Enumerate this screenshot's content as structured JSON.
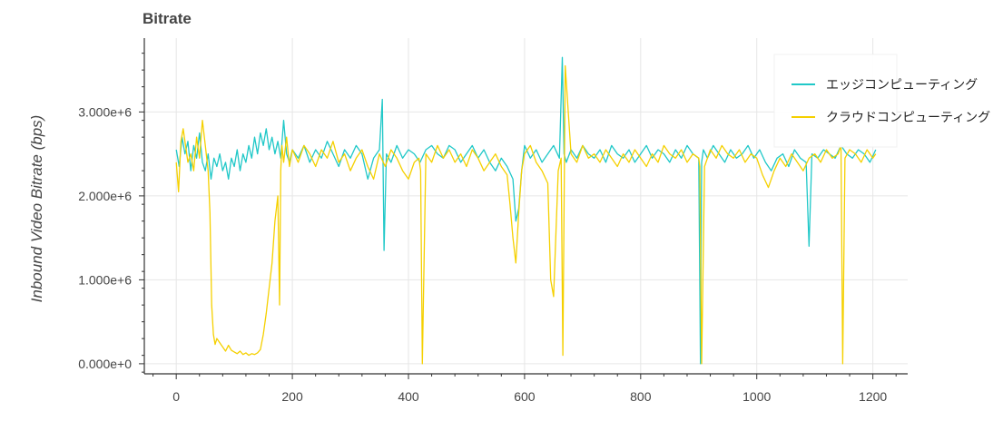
{
  "chart_data": {
    "type": "line",
    "title": "Bitrate",
    "xlabel": "",
    "ylabel": "Inbound Video Bitrate (bps)",
    "xlim": [
      -55,
      1260
    ],
    "ylim": [
      -120000,
      3880000
    ],
    "xticks": [
      0,
      200,
      400,
      600,
      800,
      1000,
      1200
    ],
    "xtick_labels": [
      "0",
      "200",
      "400",
      "600",
      "800",
      "1000",
      "1200"
    ],
    "yticks": [
      0,
      1000000,
      2000000,
      3000000
    ],
    "ytick_labels": [
      "0.000e+0",
      "1.000e+6",
      "2.000e+6",
      "3.000e+6"
    ],
    "grid": true,
    "legend_position": "top-right",
    "series": [
      {
        "name": "エッジコンピューティング",
        "color": "#20C8C8",
        "x": [
          0,
          5,
          10,
          15,
          20,
          25,
          30,
          35,
          40,
          45,
          50,
          55,
          60,
          65,
          70,
          75,
          80,
          85,
          90,
          95,
          100,
          105,
          110,
          115,
          120,
          125,
          130,
          135,
          140,
          145,
          150,
          155,
          160,
          165,
          170,
          175,
          180,
          185,
          190,
          195,
          200,
          210,
          220,
          230,
          240,
          250,
          260,
          270,
          280,
          290,
          300,
          310,
          320,
          330,
          340,
          350,
          355,
          358,
          362,
          370,
          380,
          390,
          400,
          410,
          420,
          430,
          440,
          450,
          460,
          470,
          480,
          490,
          500,
          510,
          520,
          530,
          540,
          550,
          560,
          570,
          580,
          585,
          590,
          595,
          600,
          610,
          620,
          630,
          640,
          650,
          660,
          665,
          668,
          672,
          680,
          690,
          700,
          710,
          720,
          730,
          740,
          750,
          760,
          770,
          780,
          790,
          800,
          810,
          820,
          830,
          840,
          850,
          860,
          870,
          880,
          890,
          900,
          903,
          905,
          908,
          915,
          925,
          935,
          945,
          955,
          965,
          975,
          985,
          995,
          1005,
          1015,
          1025,
          1035,
          1045,
          1055,
          1065,
          1075,
          1085,
          1090,
          1095,
          1105,
          1115,
          1125,
          1135,
          1145,
          1155,
          1165,
          1175,
          1185,
          1195,
          1205
        ],
        "values": [
          2550000,
          2350000,
          2700000,
          2500000,
          2650000,
          2300000,
          2600000,
          2450000,
          2750000,
          2400000,
          2300000,
          2500000,
          2200000,
          2450000,
          2350000,
          2500000,
          2300000,
          2400000,
          2200000,
          2450000,
          2350000,
          2550000,
          2300000,
          2500000,
          2400000,
          2600000,
          2450000,
          2700000,
          2500000,
          2750000,
          2600000,
          2800000,
          2550000,
          2700000,
          2500000,
          2650000,
          2450000,
          2900000,
          2500000,
          2400000,
          2550000,
          2450000,
          2600000,
          2400000,
          2550000,
          2450000,
          2650000,
          2500000,
          2350000,
          2550000,
          2450000,
          2600000,
          2500000,
          2200000,
          2450000,
          2550000,
          3150000,
          1350000,
          2500000,
          2400000,
          2600000,
          2450000,
          2550000,
          2500000,
          2400000,
          2550000,
          2600000,
          2500000,
          2450000,
          2600000,
          2550000,
          2400000,
          2500000,
          2600000,
          2450000,
          2550000,
          2400000,
          2300000,
          2450000,
          2350000,
          2200000,
          1700000,
          1850000,
          2300000,
          2600000,
          2450000,
          2550000,
          2400000,
          2500000,
          2600000,
          2450000,
          3650000,
          2500000,
          2400000,
          2550000,
          2450000,
          2600000,
          2500000,
          2450000,
          2550000,
          2400000,
          2600000,
          2500000,
          2450000,
          2550000,
          2400000,
          2500000,
          2600000,
          2450000,
          2550000,
          2500000,
          2400000,
          2550000,
          2450000,
          2600000,
          2500000,
          2450000,
          0,
          2400000,
          2550000,
          2450000,
          2600000,
          2500000,
          2400000,
          2550000,
          2450000,
          2500000,
          2600000,
          2450000,
          2550000,
          2400000,
          2300000,
          2450000,
          2500000,
          2350000,
          2550000,
          2450000,
          2400000,
          1400000,
          2500000,
          2450000,
          2550000,
          2500000,
          2450000,
          2600000,
          2500000,
          2450000,
          2550000,
          2500000,
          2400000,
          2550000
        ]
      },
      {
        "name": "クラウドコンピューティング",
        "color": "#F5D000",
        "x": [
          0,
          4,
          8,
          12,
          16,
          20,
          25,
          30,
          35,
          40,
          45,
          50,
          55,
          58,
          61,
          64,
          67,
          70,
          75,
          80,
          85,
          90,
          95,
          100,
          105,
          110,
          115,
          120,
          125,
          130,
          135,
          140,
          145,
          150,
          155,
          160,
          165,
          170,
          175,
          178,
          180,
          182,
          185,
          190,
          195,
          200,
          210,
          220,
          230,
          240,
          250,
          260,
          270,
          280,
          290,
          300,
          310,
          320,
          330,
          340,
          350,
          360,
          370,
          380,
          390,
          400,
          410,
          418,
          421,
          424,
          430,
          440,
          450,
          460,
          470,
          480,
          490,
          500,
          510,
          520,
          530,
          540,
          550,
          560,
          570,
          575,
          580,
          585,
          590,
          595,
          600,
          610,
          620,
          630,
          640,
          645,
          650,
          658,
          663,
          666,
          670,
          680,
          690,
          700,
          710,
          720,
          730,
          740,
          750,
          760,
          770,
          780,
          790,
          800,
          810,
          820,
          830,
          840,
          850,
          860,
          870,
          880,
          890,
          900,
          902,
          905,
          910,
          920,
          930,
          940,
          950,
          960,
          970,
          980,
          990,
          1000,
          1010,
          1020,
          1030,
          1040,
          1050,
          1060,
          1070,
          1080,
          1090,
          1100,
          1110,
          1120,
          1130,
          1140,
          1145,
          1148,
          1152,
          1160,
          1170,
          1180,
          1190,
          1200,
          1205
        ],
        "values": [
          2400000,
          2050000,
          2650000,
          2800000,
          2600000,
          2400000,
          2500000,
          2300000,
          2700000,
          2450000,
          2900000,
          2600000,
          2300000,
          1800000,
          700000,
          350000,
          230000,
          300000,
          250000,
          200000,
          150000,
          220000,
          160000,
          140000,
          120000,
          150000,
          110000,
          130000,
          100000,
          120000,
          110000,
          130000,
          170000,
          350000,
          600000,
          900000,
          1200000,
          1700000,
          2000000,
          700000,
          2300000,
          2600000,
          2400000,
          2700000,
          2350000,
          2550000,
          2400000,
          2600000,
          2500000,
          2350000,
          2550000,
          2450000,
          2650000,
          2400000,
          2500000,
          2300000,
          2450000,
          2550000,
          2350000,
          2200000,
          2500000,
          2350000,
          2550000,
          2450000,
          2300000,
          2200000,
          2400000,
          2450000,
          2300000,
          0,
          2500000,
          2400000,
          2600000,
          2450000,
          2550000,
          2400000,
          2500000,
          2350000,
          2550000,
          2450000,
          2300000,
          2400000,
          2500000,
          2350000,
          2250000,
          1900000,
          1500000,
          1200000,
          1800000,
          2300000,
          2500000,
          2600000,
          2400000,
          2300000,
          2150000,
          1000000,
          800000,
          2300000,
          2450000,
          100000,
          3550000,
          2500000,
          2400000,
          2600000,
          2450000,
          2500000,
          2400000,
          2550000,
          2450000,
          2350000,
          2500000,
          2400000,
          2550000,
          2450000,
          2350000,
          2500000,
          2400000,
          2600000,
          2500000,
          2450000,
          2550000,
          2400000,
          2500000,
          2450000,
          2350000,
          0,
          2350000,
          2550000,
          2450000,
          2600000,
          2500000,
          2450000,
          2550000,
          2400000,
          2500000,
          2450000,
          2250000,
          2100000,
          2300000,
          2450000,
          2350000,
          2500000,
          2400000,
          2300000,
          2450000,
          2500000,
          2400000,
          2550000,
          2450000,
          2500000,
          2600000,
          0,
          2450000,
          2550000,
          2500000,
          2400000,
          2550000,
          2450000,
          2500000
        ]
      }
    ]
  }
}
